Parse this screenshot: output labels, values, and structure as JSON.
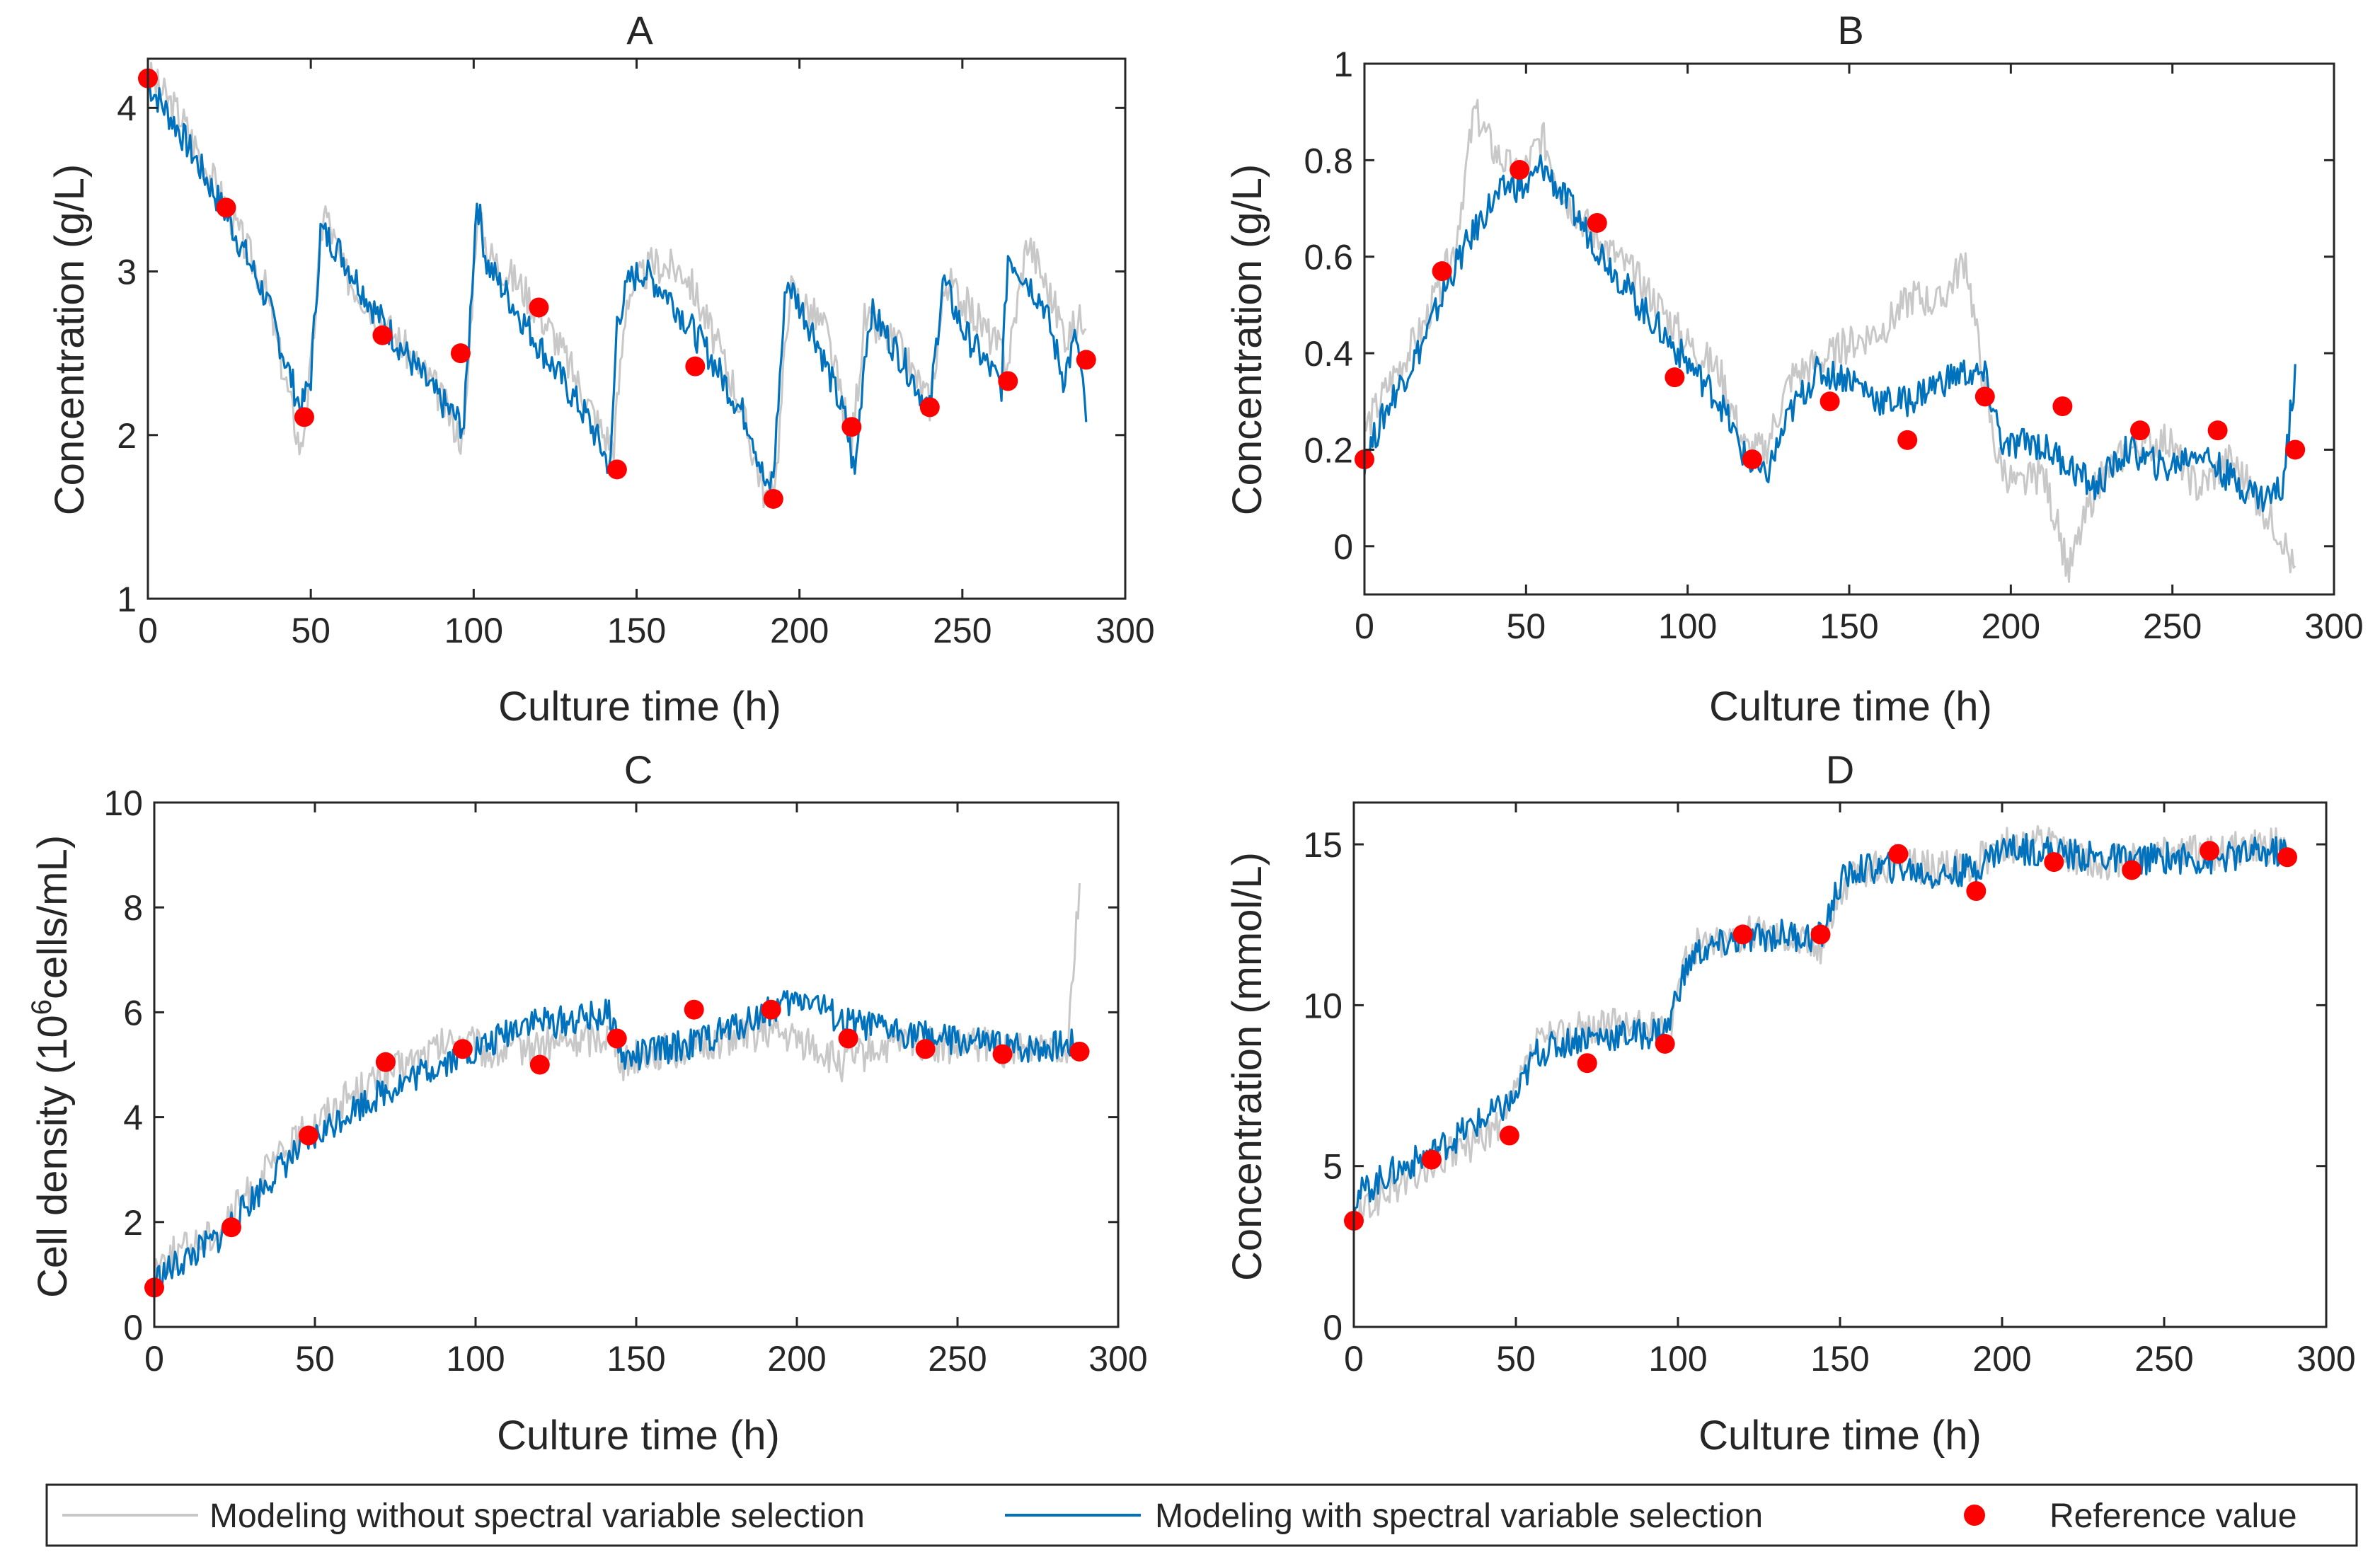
{
  "colors": {
    "without": "#c8c8c8",
    "with": "#0072bd",
    "reference": "#ff0000",
    "axis": "#262626"
  },
  "legend": {
    "items": [
      {
        "key": "without",
        "label": "Modeling without spectral variable selection",
        "kind": "line"
      },
      {
        "key": "with",
        "label": "Modeling with spectral variable selection",
        "kind": "line"
      },
      {
        "key": "reference",
        "label": "Reference value",
        "kind": "marker"
      }
    ]
  },
  "chart_data": [
    {
      "id": "A",
      "type": "line",
      "title": "A",
      "xlabel": "Culture time (h)",
      "ylabel": "Concentration (g/L)",
      "xlim": [
        0,
        300
      ],
      "ylim": [
        1,
        4.3
      ],
      "xticks": [
        0,
        50,
        100,
        150,
        200,
        250,
        300
      ],
      "yticks": [
        1,
        2,
        3,
        4
      ],
      "reference": {
        "x": [
          0,
          24,
          48,
          72,
          96,
          120,
          144,
          168,
          192,
          216,
          240,
          264,
          288
        ],
        "y": [
          4.18,
          3.39,
          2.11,
          2.61,
          2.5,
          2.78,
          1.79,
          2.42,
          1.61,
          2.05,
          2.17,
          2.33,
          2.46
        ]
      },
      "with": {
        "x": [
          0,
          10,
          24,
          36,
          47,
          50,
          53,
          58,
          70,
          88,
          97,
          101,
          104,
          112,
          120,
          135,
          142,
          144,
          148,
          152,
          160,
          172,
          185,
          190,
          192,
          196,
          205,
          214,
          217,
          220,
          222,
          232,
          240,
          244,
          250,
          262,
          264,
          268,
          275,
          281,
          285,
          288
        ],
        "y": [
          4.15,
          3.85,
          3.35,
          2.85,
          2.15,
          2.35,
          3.25,
          3.15,
          2.75,
          2.25,
          2.05,
          3.45,
          3.05,
          2.8,
          2.55,
          2.1,
          1.8,
          2.7,
          2.95,
          3.0,
          2.85,
          2.5,
          2.05,
          1.65,
          1.75,
          2.95,
          2.6,
          2.1,
          1.75,
          2.5,
          2.75,
          2.45,
          2.15,
          2.95,
          2.65,
          2.3,
          3.1,
          3.0,
          2.8,
          2.35,
          2.6,
          2.1
        ]
      },
      "without": {
        "x": [
          0,
          10,
          24,
          36,
          47,
          50,
          54,
          60,
          72,
          88,
          97,
          101,
          105,
          115,
          125,
          140,
          143,
          147,
          155,
          165,
          180,
          190,
          193,
          197,
          208,
          216,
          220,
          230,
          240,
          245,
          255,
          264,
          270,
          282,
          288
        ],
        "y": [
          4.2,
          3.95,
          3.4,
          2.9,
          1.9,
          2.4,
          3.4,
          3.0,
          2.7,
          2.3,
          1.95,
          3.35,
          3.1,
          2.9,
          2.6,
          2.0,
          1.95,
          2.85,
          3.05,
          3.0,
          2.3,
          1.6,
          1.8,
          2.9,
          2.65,
          1.95,
          2.7,
          2.55,
          2.2,
          2.95,
          2.7,
          2.45,
          3.2,
          2.6,
          2.75
        ]
      }
    },
    {
      "id": "B",
      "type": "line",
      "title": "B",
      "xlabel": "Culture time (h)",
      "ylabel": "Concentration (g/L)",
      "xlim": [
        0,
        300
      ],
      "ylim": [
        -0.1,
        1.0
      ],
      "xticks": [
        0,
        50,
        100,
        150,
        200,
        250,
        300
      ],
      "yticks": [
        0,
        0.2,
        0.4,
        0.6,
        0.8,
        1
      ],
      "reference": {
        "x": [
          0,
          24,
          48,
          72,
          96,
          120,
          144,
          168,
          192,
          216,
          240,
          264,
          288
        ],
        "y": [
          0.18,
          0.57,
          0.78,
          0.67,
          0.35,
          0.18,
          0.3,
          0.22,
          0.31,
          0.29,
          0.24,
          0.24,
          0.2
        ]
      },
      "with": {
        "x": [
          0,
          8,
          18,
          28,
          38,
          45,
          50,
          55,
          62,
          72,
          85,
          100,
          110,
          118,
          124,
          132,
          140,
          150,
          160,
          168,
          175,
          185,
          192,
          198,
          206,
          216,
          226,
          236,
          248,
          258,
          268,
          278,
          284,
          288
        ],
        "y": [
          0.18,
          0.3,
          0.42,
          0.58,
          0.7,
          0.75,
          0.74,
          0.79,
          0.72,
          0.62,
          0.5,
          0.38,
          0.3,
          0.18,
          0.14,
          0.28,
          0.36,
          0.35,
          0.3,
          0.3,
          0.33,
          0.36,
          0.35,
          0.2,
          0.22,
          0.18,
          0.12,
          0.2,
          0.16,
          0.2,
          0.14,
          0.1,
          0.12,
          0.36
        ]
      },
      "without": {
        "x": [
          0,
          8,
          18,
          28,
          34,
          40,
          48,
          55,
          62,
          72,
          85,
          100,
          110,
          118,
          124,
          132,
          140,
          150,
          160,
          170,
          178,
          186,
          192,
          196,
          202,
          210,
          218,
          226,
          236,
          248,
          258,
          268,
          278,
          284,
          288
        ],
        "y": [
          0.24,
          0.34,
          0.45,
          0.62,
          0.9,
          0.82,
          0.76,
          0.85,
          0.72,
          0.64,
          0.55,
          0.42,
          0.36,
          0.2,
          0.2,
          0.35,
          0.38,
          0.42,
          0.45,
          0.52,
          0.5,
          0.6,
          0.32,
          0.18,
          0.12,
          0.15,
          -0.05,
          0.12,
          0.2,
          0.22,
          0.12,
          0.18,
          0.08,
          0.02,
          -0.06
        ]
      }
    },
    {
      "id": "C",
      "type": "line",
      "title": "C",
      "xlabel": "Culture time (h)",
      "ylabel": "Cell density (10^6 cells/mL)",
      "ylabel_parts": {
        "before": "Cell density (10",
        "sup": "6",
        "after": "cells/mL)"
      },
      "xlim": [
        0,
        300
      ],
      "ylim": [
        0,
        10
      ],
      "xticks": [
        0,
        50,
        100,
        150,
        200,
        250,
        300
      ],
      "yticks": [
        0,
        2,
        4,
        6,
        8,
        10
      ],
      "reference": {
        "x": [
          0,
          24,
          48,
          72,
          96,
          120,
          144,
          168,
          192,
          216,
          240,
          264,
          288
        ],
        "y": [
          0.75,
          1.9,
          3.65,
          5.05,
          5.3,
          5.0,
          5.5,
          6.05,
          6.05,
          5.5,
          5.3,
          5.2,
          5.25
        ]
      },
      "with": {
        "x": [
          0,
          10,
          20,
          30,
          40,
          50,
          60,
          72,
          85,
          95,
          105,
          115,
          125,
          135,
          142,
          146,
          150,
          158,
          168,
          180,
          192,
          204,
          214,
          224,
          236,
          248,
          258,
          268,
          278,
          288
        ],
        "y": [
          0.9,
          1.3,
          1.7,
          2.4,
          3.1,
          3.6,
          4.1,
          4.5,
          4.9,
          5.2,
          5.4,
          5.85,
          5.8,
          5.9,
          5.95,
          5.1,
          5.15,
          5.3,
          5.4,
          5.7,
          6.05,
          6.3,
          5.8,
          5.7,
          5.6,
          5.45,
          5.4,
          5.3,
          5.35,
          5.4
        ]
      },
      "without": {
        "x": [
          0,
          10,
          20,
          30,
          40,
          50,
          60,
          72,
          85,
          95,
          105,
          115,
          125,
          135,
          142,
          146,
          150,
          158,
          168,
          180,
          192,
          204,
          214,
          224,
          236,
          248,
          258,
          268,
          278,
          284,
          288
        ],
        "y": [
          1.2,
          1.5,
          1.85,
          2.6,
          3.3,
          3.9,
          4.4,
          4.8,
          5.2,
          5.5,
          5.2,
          5.35,
          5.4,
          5.5,
          5.6,
          5.0,
          5.2,
          5.25,
          5.3,
          5.55,
          5.6,
          5.4,
          5.0,
          5.3,
          5.45,
          5.3,
          5.4,
          5.2,
          5.5,
          5.3,
          8.5
        ]
      }
    },
    {
      "id": "D",
      "type": "line",
      "title": "D",
      "xlabel": "Culture time (h)",
      "ylabel": "Concentration (mmol/L)",
      "xlim": [
        0,
        300
      ],
      "ylim": [
        0,
        16.3
      ],
      "xticks": [
        0,
        50,
        100,
        150,
        200,
        250,
        300
      ],
      "yticks": [
        0,
        5,
        10,
        15
      ],
      "reference": {
        "x": [
          0,
          24,
          48,
          72,
          96,
          120,
          144,
          168,
          192,
          216,
          240,
          264,
          288
        ],
        "y": [
          3.3,
          5.2,
          5.95,
          8.2,
          8.8,
          12.2,
          12.2,
          14.7,
          13.55,
          14.45,
          14.2,
          14.8,
          14.6
        ]
      },
      "with": {
        "x": [
          0,
          10,
          24,
          36,
          46,
          50,
          56,
          70,
          90,
          97,
          100,
          105,
          118,
          132,
          144,
          150,
          155,
          168,
          180,
          192,
          200,
          214,
          228,
          240,
          252,
          264,
          276,
          288
        ],
        "y": [
          4.0,
          4.7,
          5.4,
          6.2,
          6.8,
          7.1,
          8.5,
          9.0,
          9.1,
          9.3,
          10.5,
          11.6,
          12.0,
          12.2,
          12.1,
          13.8,
          14.2,
          14.3,
          14.0,
          14.3,
          14.9,
          14.8,
          14.6,
          14.5,
          14.6,
          14.5,
          14.7,
          14.8
        ]
      },
      "without": {
        "x": [
          0,
          10,
          24,
          36,
          46,
          50,
          56,
          70,
          90,
          97,
          100,
          105,
          118,
          132,
          144,
          150,
          155,
          168,
          180,
          192,
          200,
          214,
          228,
          240,
          252,
          264,
          276,
          288
        ],
        "y": [
          3.3,
          4.2,
          5.0,
          5.7,
          6.3,
          7.3,
          8.8,
          9.3,
          9.4,
          9.0,
          10.8,
          11.8,
          12.2,
          12.3,
          11.8,
          13.6,
          14.0,
          14.5,
          14.2,
          14.4,
          15.0,
          15.0,
          14.4,
          14.6,
          14.9,
          14.7,
          14.9,
          15.0
        ]
      }
    }
  ]
}
